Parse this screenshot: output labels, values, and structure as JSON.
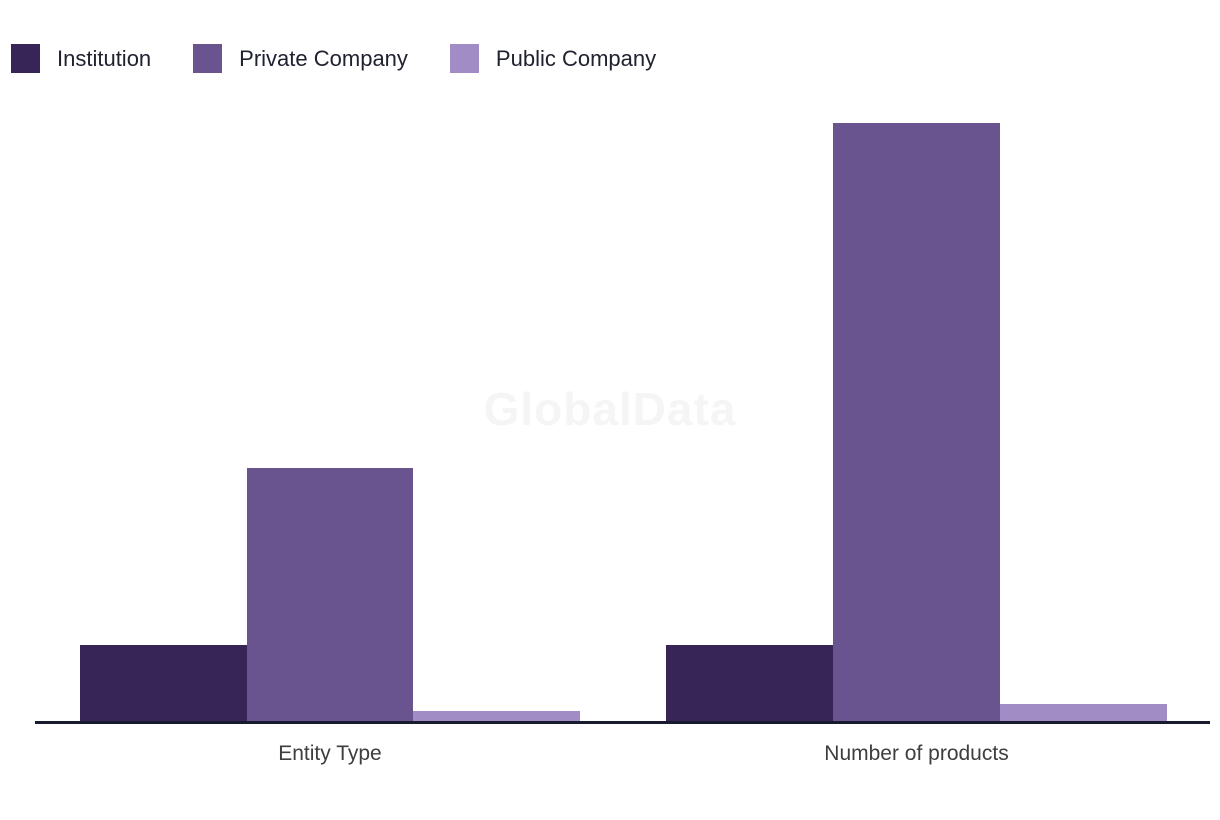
{
  "watermark": "GlobalData",
  "axis": {
    "line_color": "#171B2D"
  },
  "chart_data": {
    "type": "bar",
    "grouping": "grouped",
    "categories": [
      "Entity Type",
      "Number of products"
    ],
    "series": [
      {
        "name": "Institution",
        "color": "#362556",
        "values": [
          77,
          77
        ]
      },
      {
        "name": "Private Company",
        "color": "#695490",
        "values": [
          254,
          599
        ]
      },
      {
        "name": "Public Company",
        "color": "#A18CC5",
        "values": [
          11,
          18
        ]
      }
    ],
    "title": "",
    "xlabel": "",
    "ylabel": "",
    "ylim": [
      0,
      650
    ],
    "value_axis_labeled": false,
    "grid": false,
    "legend_position": "top-left",
    "watermark_text": "GlobalData"
  }
}
